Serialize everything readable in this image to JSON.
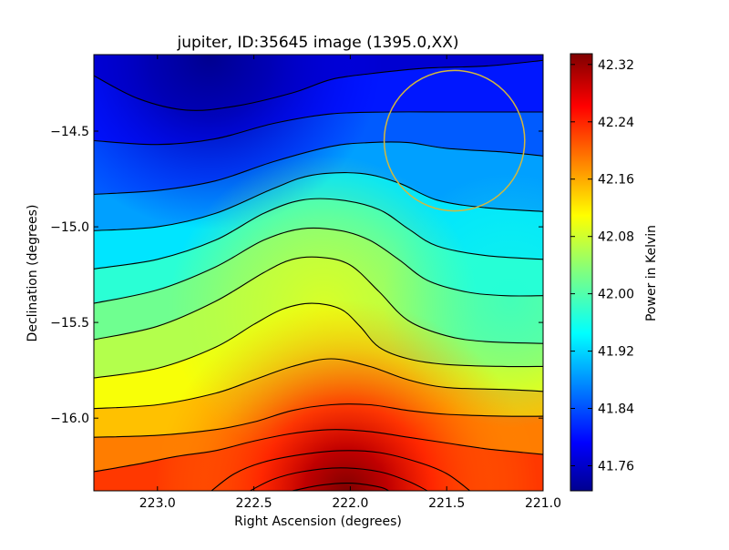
{
  "chart_data": {
    "type": "heatmap",
    "title": "jupiter, ID:35645 image (1395.0,XX)",
    "xlabel": "Right Ascension (degrees)",
    "ylabel": "Declination (degrees)",
    "colorbar_label": "Power in Kelvin",
    "x_axis_inverted": true,
    "xlim": [
      223.33,
      221.0
    ],
    "ylim": [
      -16.38,
      -14.1
    ],
    "x_ticks": [
      223.0,
      222.5,
      222.0,
      221.5,
      221.0
    ],
    "x_tick_labels": [
      "223.0",
      "222.5",
      "222.0",
      "221.5",
      "221.0"
    ],
    "y_ticks": [
      -14.5,
      -15.0,
      -15.5,
      -16.0
    ],
    "y_tick_labels": [
      "−14.5",
      "−15.0",
      "−15.5",
      "−16.0"
    ],
    "colorbar_range": [
      41.725,
      42.335
    ],
    "colorbar_ticks": [
      41.76,
      41.84,
      41.92,
      42.0,
      42.08,
      42.16,
      42.24,
      42.32
    ],
    "colorbar_tick_labels": [
      "41.76",
      "41.84",
      "41.92",
      "42.00",
      "42.08",
      "42.16",
      "42.24",
      "42.32"
    ],
    "colormap": "jet",
    "contour_color": "#000000",
    "contour_lines": [
      {
        "points": [
          [
            223.33,
            -14.21
          ],
          [
            223.1,
            -14.33
          ],
          [
            222.85,
            -14.39
          ],
          [
            222.6,
            -14.37
          ],
          [
            222.3,
            -14.3
          ],
          [
            222.1,
            -14.23
          ],
          [
            221.9,
            -14.2
          ],
          [
            221.6,
            -14.17
          ],
          [
            221.3,
            -14.16
          ],
          [
            221.0,
            -14.13
          ]
        ]
      },
      {
        "points": [
          [
            223.33,
            -14.55
          ],
          [
            223.0,
            -14.57
          ],
          [
            222.7,
            -14.54
          ],
          [
            222.4,
            -14.46
          ],
          [
            222.1,
            -14.41
          ],
          [
            221.8,
            -14.4
          ],
          [
            221.5,
            -14.4
          ],
          [
            221.2,
            -14.4
          ],
          [
            221.0,
            -14.4
          ]
        ]
      },
      {
        "points": [
          [
            223.33,
            -14.83
          ],
          [
            223.0,
            -14.81
          ],
          [
            222.7,
            -14.76
          ],
          [
            222.4,
            -14.66
          ],
          [
            222.1,
            -14.58
          ],
          [
            221.9,
            -14.56
          ],
          [
            221.7,
            -14.56
          ],
          [
            221.5,
            -14.59
          ],
          [
            221.2,
            -14.61
          ],
          [
            221.0,
            -14.63
          ]
        ]
      },
      {
        "points": [
          [
            223.33,
            -15.02
          ],
          [
            223.0,
            -15.0
          ],
          [
            222.7,
            -14.93
          ],
          [
            222.4,
            -14.8
          ],
          [
            222.2,
            -14.73
          ],
          [
            221.95,
            -14.72
          ],
          [
            221.75,
            -14.77
          ],
          [
            221.55,
            -14.86
          ],
          [
            221.3,
            -14.9
          ],
          [
            221.0,
            -14.92
          ]
        ]
      },
      {
        "points": [
          [
            223.33,
            -15.22
          ],
          [
            223.0,
            -15.17
          ],
          [
            222.7,
            -15.07
          ],
          [
            222.45,
            -14.93
          ],
          [
            222.25,
            -14.86
          ],
          [
            222.05,
            -14.86
          ],
          [
            221.85,
            -14.91
          ],
          [
            221.7,
            -15.01
          ],
          [
            221.55,
            -15.1
          ],
          [
            221.3,
            -15.15
          ],
          [
            221.0,
            -15.17
          ]
        ]
      },
      {
        "points": [
          [
            223.33,
            -15.4
          ],
          [
            223.0,
            -15.33
          ],
          [
            222.7,
            -15.21
          ],
          [
            222.45,
            -15.07
          ],
          [
            222.25,
            -15.01
          ],
          [
            222.05,
            -15.02
          ],
          [
            221.9,
            -15.07
          ],
          [
            221.75,
            -15.17
          ],
          [
            221.6,
            -15.28
          ],
          [
            221.4,
            -15.34
          ],
          [
            221.2,
            -15.36
          ],
          [
            221.0,
            -15.36
          ]
        ]
      },
      {
        "points": [
          [
            223.33,
            -15.59
          ],
          [
            223.0,
            -15.52
          ],
          [
            222.7,
            -15.39
          ],
          [
            222.45,
            -15.24
          ],
          [
            222.3,
            -15.17
          ],
          [
            222.15,
            -15.16
          ],
          [
            222.0,
            -15.2
          ],
          [
            221.85,
            -15.34
          ],
          [
            221.7,
            -15.49
          ],
          [
            221.5,
            -15.57
          ],
          [
            221.3,
            -15.6
          ],
          [
            221.0,
            -15.61
          ]
        ]
      },
      {
        "points": [
          [
            223.33,
            -15.79
          ],
          [
            223.0,
            -15.74
          ],
          [
            222.7,
            -15.63
          ],
          [
            222.5,
            -15.51
          ],
          [
            222.35,
            -15.43
          ],
          [
            222.2,
            -15.4
          ],
          [
            222.05,
            -15.43
          ],
          [
            221.95,
            -15.52
          ],
          [
            221.85,
            -15.63
          ],
          [
            221.7,
            -15.69
          ],
          [
            221.5,
            -15.72
          ],
          [
            221.2,
            -15.73
          ],
          [
            221.0,
            -15.73
          ]
        ]
      },
      {
        "points": [
          [
            223.33,
            -15.95
          ],
          [
            223.0,
            -15.93
          ],
          [
            222.7,
            -15.87
          ],
          [
            222.5,
            -15.8
          ],
          [
            222.3,
            -15.73
          ],
          [
            222.1,
            -15.69
          ],
          [
            221.9,
            -15.73
          ],
          [
            221.7,
            -15.8
          ],
          [
            221.5,
            -15.84
          ],
          [
            221.2,
            -15.85
          ],
          [
            221.0,
            -15.86
          ]
        ]
      },
      {
        "points": [
          [
            223.33,
            -16.1
          ],
          [
            223.0,
            -16.09
          ],
          [
            222.7,
            -16.06
          ],
          [
            222.5,
            -16.02
          ],
          [
            222.3,
            -15.96
          ],
          [
            222.1,
            -15.93
          ],
          [
            221.9,
            -15.93
          ],
          [
            221.7,
            -15.96
          ],
          [
            221.5,
            -15.98
          ],
          [
            221.2,
            -15.99
          ],
          [
            221.0,
            -15.99
          ]
        ]
      },
      {
        "points": [
          [
            223.33,
            -16.28
          ],
          [
            223.1,
            -16.24
          ],
          [
            222.9,
            -16.2
          ],
          [
            222.7,
            -16.17
          ],
          [
            222.5,
            -16.12
          ],
          [
            222.3,
            -16.08
          ],
          [
            222.1,
            -16.06
          ],
          [
            221.9,
            -16.07
          ],
          [
            221.7,
            -16.1
          ],
          [
            221.5,
            -16.13
          ],
          [
            221.3,
            -16.16
          ],
          [
            221.1,
            -16.18
          ],
          [
            221.0,
            -16.19
          ]
        ]
      },
      {
        "points": [
          [
            222.72,
            -16.38
          ],
          [
            222.6,
            -16.29
          ],
          [
            222.45,
            -16.23
          ],
          [
            222.25,
            -16.19
          ],
          [
            222.05,
            -16.17
          ],
          [
            221.85,
            -16.18
          ],
          [
            221.65,
            -16.23
          ],
          [
            221.5,
            -16.29
          ],
          [
            221.38,
            -16.38
          ]
        ]
      },
      {
        "points": [
          [
            222.52,
            -16.38
          ],
          [
            222.4,
            -16.32
          ],
          [
            222.25,
            -16.28
          ],
          [
            222.05,
            -16.26
          ],
          [
            221.85,
            -16.28
          ],
          [
            221.7,
            -16.33
          ],
          [
            221.6,
            -16.38
          ]
        ]
      },
      {
        "points": [
          [
            222.3,
            -16.38
          ],
          [
            222.15,
            -16.35
          ],
          [
            222.0,
            -16.34
          ],
          [
            221.85,
            -16.36
          ],
          [
            221.8,
            -16.38
          ]
        ]
      }
    ],
    "beam_circle": {
      "center_ra": 221.46,
      "center_dec": -14.55,
      "radius_deg": 0.367,
      "color": "#d4b83c"
    }
  }
}
